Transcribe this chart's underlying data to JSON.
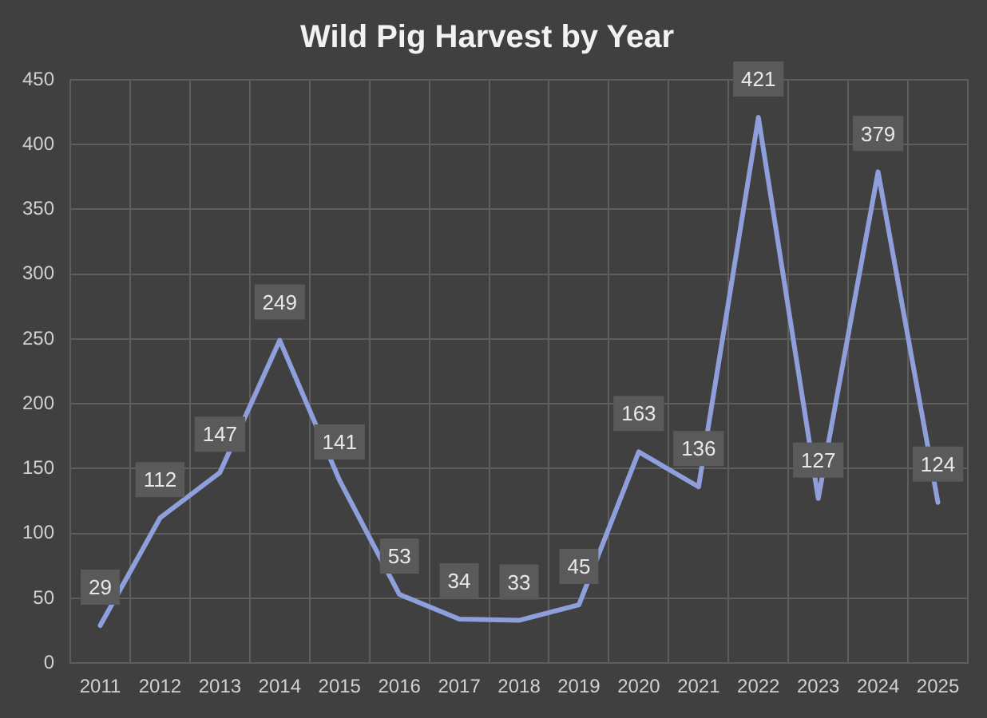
{
  "chart_data": {
    "type": "line",
    "title": "Wild Pig Harvest by Year",
    "categories": [
      "2011",
      "2012",
      "2013",
      "2014",
      "2015",
      "2016",
      "2017",
      "2018",
      "2019",
      "2020",
      "2021",
      "2022",
      "2023",
      "2024",
      "2025"
    ],
    "series": [
      {
        "color": "#8e9fdc",
        "values": [
          29,
          112,
          147,
          249,
          141,
          53,
          34,
          33,
          45,
          163,
          136,
          421,
          127,
          379,
          124
        ]
      }
    ],
    "ylim": [
      0,
      450
    ],
    "yticks": [
      0,
      50,
      100,
      150,
      200,
      250,
      300,
      350,
      400,
      450
    ],
    "grid": true,
    "legend": false,
    "marker": "none",
    "line_style": "solid",
    "data_labels": true
  }
}
